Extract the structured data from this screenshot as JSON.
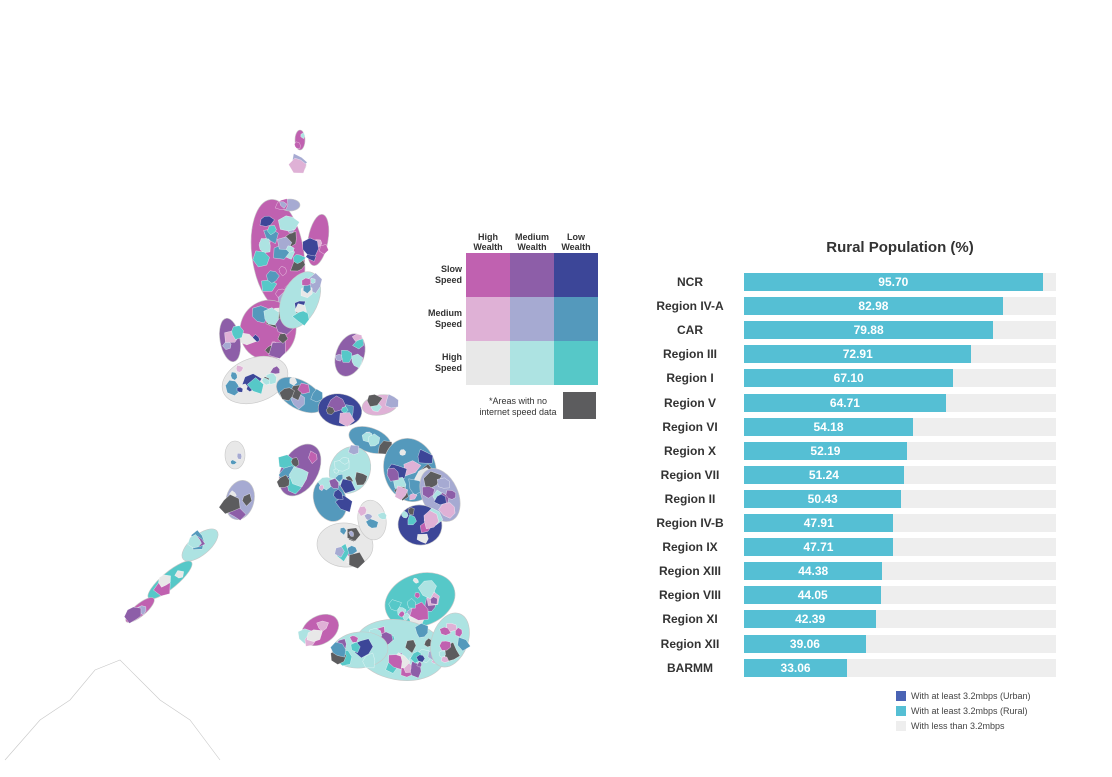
{
  "map": {
    "attribution": "",
    "colors": {
      "no_data": "#5c5c5e",
      "water_outline": "#c8c8c8"
    },
    "legend": {
      "columns": [
        "High\nWealth",
        "Medium\nWealth",
        "Low\nWealth"
      ],
      "rows": [
        "Slow\nSpeed",
        "Medium\nSpeed",
        "High\nSpeed"
      ],
      "cells": [
        [
          "#c061b0",
          "#8d5ea8",
          "#3c4698"
        ],
        [
          "#dfb1d6",
          "#a6aad2",
          "#5499bc"
        ],
        [
          "#e8e8e8",
          "#ade3e2",
          "#56c8c8"
        ]
      ],
      "no_data_note": "*Areas with no\ninternet speed data"
    }
  },
  "chart_data": {
    "type": "bar",
    "orientation": "horizontal",
    "stacked": true,
    "title": "Rural Population (%)",
    "xlim": [
      0,
      100
    ],
    "categories": [
      "NCR",
      "Region IV-A",
      "CAR",
      "Region III",
      "Region I",
      "Region V",
      "Region VI",
      "Region X",
      "Region VII",
      "Region II",
      "Region IV-B",
      "Region IX",
      "Region XIII",
      "Region VIII",
      "Region XI",
      "Region XII",
      "BARMM"
    ],
    "series": [
      {
        "name": "With at least 3.2mbps (Rural)",
        "color": "#55bfd4",
        "values": [
          95.7,
          82.98,
          79.88,
          72.91,
          67.1,
          64.71,
          54.18,
          52.19,
          51.24,
          50.43,
          47.91,
          47.71,
          44.38,
          44.05,
          42.39,
          39.06,
          33.06
        ],
        "labels": [
          "95.70",
          "82.98",
          "79.88",
          "72.91",
          "67.10",
          "64.71",
          "54.18",
          "52.19",
          "51.24",
          "50.43",
          "47.91",
          "47.71",
          "44.38",
          "44.05",
          "42.39",
          "39.06",
          "33.06"
        ]
      },
      {
        "name": "With less than 3.2mbps",
        "color": "#eeeeee",
        "values": [
          4.3,
          17.02,
          20.12,
          27.09,
          32.9,
          35.29,
          45.82,
          47.81,
          48.76,
          49.57,
          52.09,
          52.29,
          55.62,
          55.95,
          57.61,
          60.94,
          66.94
        ]
      }
    ],
    "legend": {
      "position": "bottom-right",
      "items": [
        {
          "name": "With at least 3.2mbps (Urban)",
          "color": "#4a63b4"
        },
        {
          "name": "With at least 3.2mbps (Rural)",
          "color": "#55bfd4"
        },
        {
          "name": "With less than 3.2mbps",
          "color": "#eeeeee"
        }
      ]
    }
  }
}
